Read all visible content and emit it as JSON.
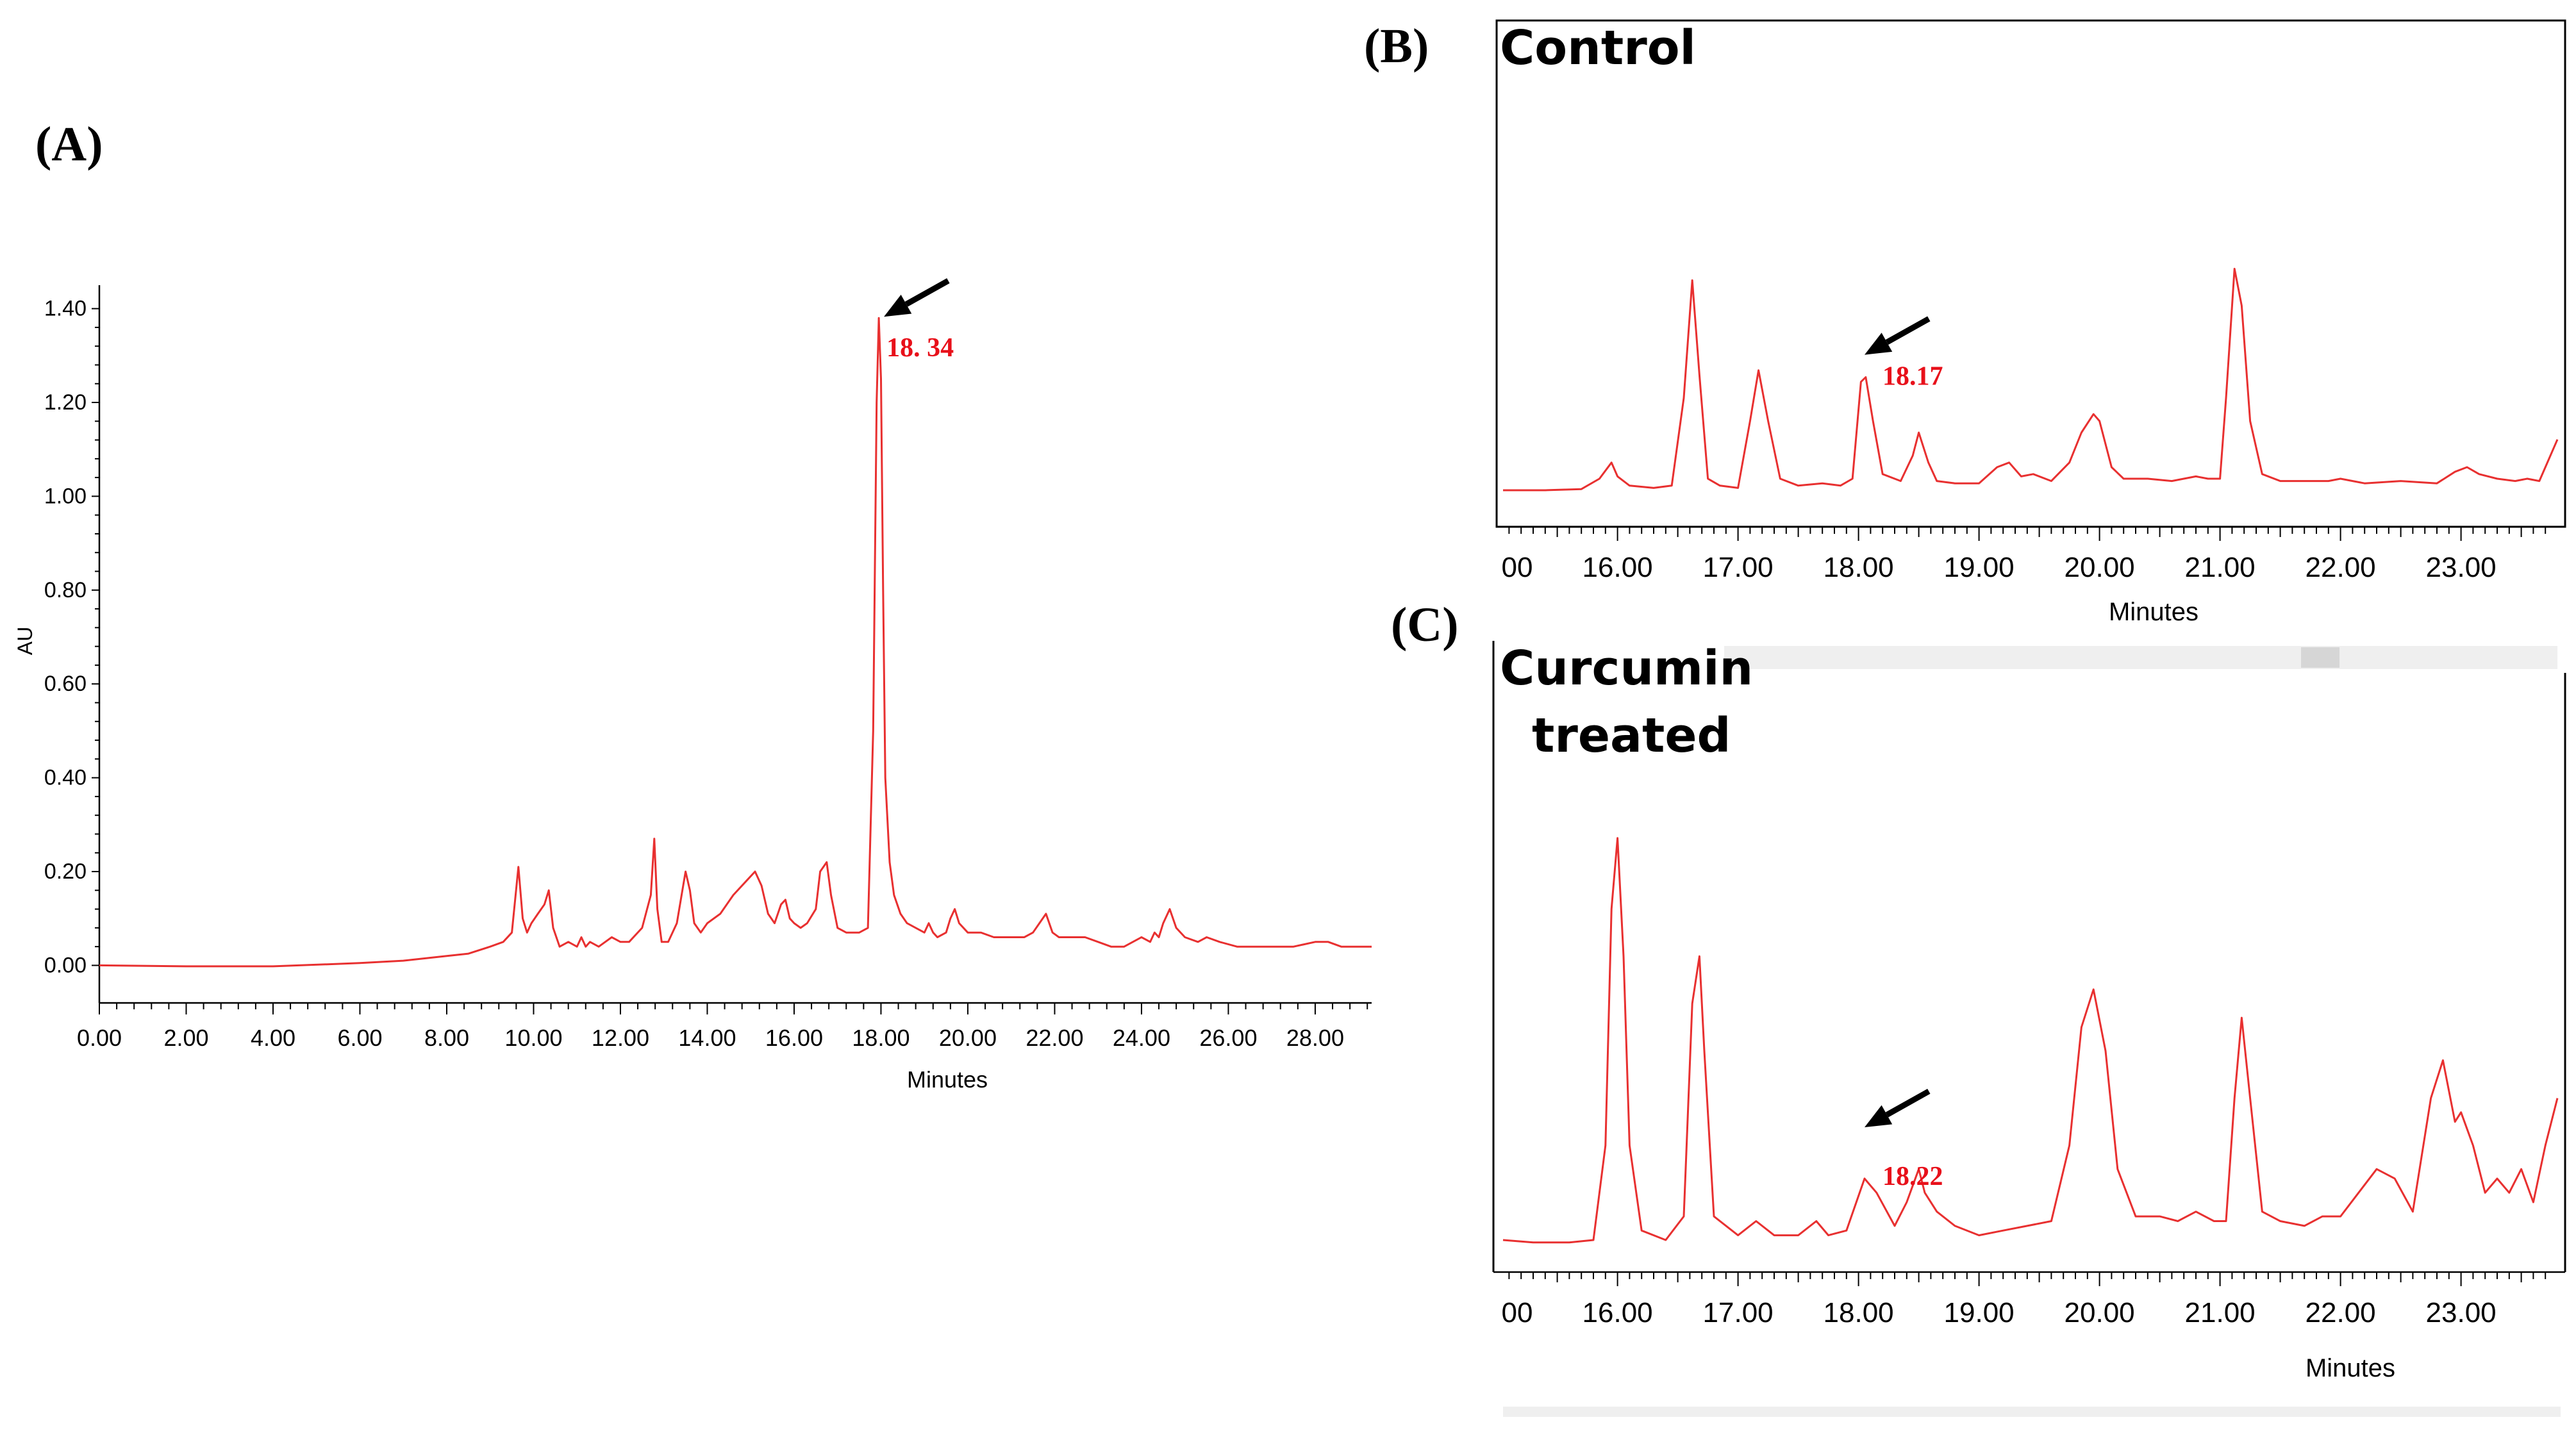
{
  "colors": {
    "trace": "#e83030",
    "peak_label": "#e8101a",
    "arrow": "#000000"
  },
  "chart_data": [
    {
      "panel": "(A)",
      "type": "line",
      "title": "",
      "xlabel": "Minutes",
      "ylabel": "AU",
      "xlim": [
        0,
        29.3
      ],
      "ylim": [
        -0.08,
        1.45
      ],
      "x_ticks": [
        "0.00",
        "2.00",
        "4.00",
        "6.00",
        "8.00",
        "10.00",
        "12.00",
        "14.00",
        "16.00",
        "18.00",
        "20.00",
        "22.00",
        "24.00",
        "26.00",
        "28.00"
      ],
      "y_ticks": [
        "0.00",
        "0.20",
        "0.40",
        "0.60",
        "0.80",
        "1.00",
        "1.20",
        "1.40"
      ],
      "peak_label": "18. 34",
      "peak": {
        "x": 17.95,
        "y": 1.38
      },
      "grid": false,
      "series": [
        {
          "x": [
            0,
            2,
            4,
            6,
            7,
            8,
            8.5,
            9,
            9.3,
            9.5,
            9.65,
            9.75,
            9.85,
            9.95,
            10.1,
            10.25,
            10.35,
            10.45,
            10.6,
            10.8,
            11,
            11.1,
            11.2,
            11.3,
            11.5,
            11.8,
            12,
            12.2,
            12.5,
            12.7,
            12.78,
            12.85,
            12.95,
            13.1,
            13.3,
            13.5,
            13.6,
            13.7,
            13.85,
            14,
            14.3,
            14.6,
            14.9,
            15.1,
            15.25,
            15.4,
            15.55,
            15.7,
            15.8,
            15.9,
            16,
            16.15,
            16.3,
            16.5,
            16.6,
            16.75,
            16.85,
            17,
            17.2,
            17.5,
            17.7,
            17.82,
            17.9,
            17.95,
            18,
            18.05,
            18.1,
            18.2,
            18.3,
            18.45,
            18.6,
            18.8,
            19,
            19.1,
            19.2,
            19.3,
            19.5,
            19.6,
            19.7,
            19.8,
            20,
            20.3,
            20.6,
            21,
            21.3,
            21.5,
            21.65,
            21.8,
            21.95,
            22.1,
            22.4,
            22.7,
            23,
            23.3,
            23.6,
            24,
            24.2,
            24.3,
            24.4,
            24.5,
            24.65,
            24.8,
            25,
            25.3,
            25.5,
            25.8,
            26.2,
            26.6,
            27,
            27.5,
            28,
            28.3,
            28.6,
            29,
            29.3
          ],
          "y": [
            0.0,
            -0.002,
            -0.002,
            0.005,
            0.01,
            0.02,
            0.025,
            0.04,
            0.05,
            0.07,
            0.21,
            0.1,
            0.07,
            0.09,
            0.11,
            0.13,
            0.16,
            0.08,
            0.04,
            0.05,
            0.04,
            0.06,
            0.04,
            0.05,
            0.04,
            0.06,
            0.05,
            0.05,
            0.08,
            0.15,
            0.27,
            0.12,
            0.05,
            0.05,
            0.09,
            0.2,
            0.16,
            0.09,
            0.07,
            0.09,
            0.11,
            0.15,
            0.18,
            0.2,
            0.17,
            0.11,
            0.09,
            0.13,
            0.14,
            0.1,
            0.09,
            0.08,
            0.09,
            0.12,
            0.2,
            0.22,
            0.15,
            0.08,
            0.07,
            0.07,
            0.08,
            0.5,
            1.2,
            1.38,
            1.25,
            0.8,
            0.4,
            0.22,
            0.15,
            0.11,
            0.09,
            0.08,
            0.07,
            0.09,
            0.07,
            0.06,
            0.07,
            0.1,
            0.12,
            0.09,
            0.07,
            0.07,
            0.06,
            0.06,
            0.06,
            0.07,
            0.09,
            0.11,
            0.07,
            0.06,
            0.06,
            0.06,
            0.05,
            0.04,
            0.04,
            0.06,
            0.05,
            0.07,
            0.06,
            0.09,
            0.12,
            0.08,
            0.06,
            0.05,
            0.06,
            0.05,
            0.04,
            0.04,
            0.04,
            0.04,
            0.05,
            0.05,
            0.04,
            0.04,
            0.04
          ]
        }
      ]
    },
    {
      "panel": "(B)",
      "type": "line",
      "title": "Control",
      "xlabel": "Minutes",
      "xlim": [
        15.05,
        23.8
      ],
      "x_ticks": [
        "00",
        "16.00",
        "17.00",
        "18.00",
        "19.00",
        "20.00",
        "21.00",
        "22.00",
        "23.00"
      ],
      "peak_label": "18.17",
      "peak": {
        "x": 18.05,
        "y": 0.49
      },
      "grid": false,
      "series": [
        {
          "x": [
            15.05,
            15.4,
            15.7,
            15.85,
            15.95,
            16,
            16.1,
            16.3,
            16.45,
            16.55,
            16.62,
            16.68,
            16.75,
            16.85,
            17,
            17.1,
            17.17,
            17.25,
            17.35,
            17.5,
            17.7,
            17.85,
            17.95,
            18.02,
            18.06,
            18.12,
            18.2,
            18.35,
            18.45,
            18.5,
            18.58,
            18.65,
            18.8,
            19.0,
            19.15,
            19.25,
            19.35,
            19.45,
            19.6,
            19.75,
            19.85,
            19.95,
            20.0,
            20.1,
            20.2,
            20.4,
            20.6,
            20.8,
            20.9,
            21.0,
            21.05,
            21.12,
            21.18,
            21.25,
            21.35,
            21.5,
            21.7,
            21.9,
            22.0,
            22.2,
            22.5,
            22.8,
            22.95,
            23.05,
            23.15,
            23.3,
            23.45,
            23.55,
            23.65,
            23.8
          ],
          "y": [
            0.0,
            0.0,
            0.005,
            0.05,
            0.12,
            0.06,
            0.02,
            0.01,
            0.02,
            0.4,
            0.91,
            0.5,
            0.05,
            0.02,
            0.01,
            0.3,
            0.52,
            0.3,
            0.05,
            0.02,
            0.03,
            0.02,
            0.05,
            0.47,
            0.49,
            0.3,
            0.07,
            0.04,
            0.15,
            0.25,
            0.12,
            0.04,
            0.03,
            0.03,
            0.1,
            0.12,
            0.06,
            0.07,
            0.04,
            0.12,
            0.25,
            0.33,
            0.3,
            0.1,
            0.05,
            0.05,
            0.04,
            0.06,
            0.05,
            0.05,
            0.4,
            0.96,
            0.8,
            0.3,
            0.07,
            0.04,
            0.04,
            0.04,
            0.05,
            0.03,
            0.04,
            0.03,
            0.08,
            0.1,
            0.07,
            0.05,
            0.04,
            0.05,
            0.04,
            0.22
          ]
        }
      ]
    },
    {
      "panel": "(C)",
      "type": "line",
      "title": "Curcumin treated",
      "title_lines": [
        "Curcumin",
        "treated"
      ],
      "xlabel": "Minutes",
      "xlim": [
        15.05,
        23.8
      ],
      "x_ticks": [
        "00",
        "16.00",
        "17.00",
        "18.00",
        "19.00",
        "20.00",
        "21.00",
        "22.00",
        "23.00"
      ],
      "peak_label": "18.22",
      "peak": {
        "x": 18.05,
        "y": 0.13
      },
      "grid": false,
      "series": [
        {
          "x": [
            15.05,
            15.3,
            15.6,
            15.8,
            15.9,
            15.95,
            16.0,
            16.05,
            16.1,
            16.2,
            16.4,
            16.55,
            16.62,
            16.68,
            16.72,
            16.8,
            17.0,
            17.15,
            17.3,
            17.5,
            17.65,
            17.75,
            17.9,
            18.05,
            18.15,
            18.3,
            18.4,
            18.5,
            18.55,
            18.65,
            18.8,
            19.0,
            19.2,
            19.4,
            19.6,
            19.75,
            19.85,
            19.95,
            20.05,
            20.15,
            20.3,
            20.5,
            20.65,
            20.8,
            20.95,
            21.05,
            21.12,
            21.18,
            21.25,
            21.35,
            21.5,
            21.7,
            21.85,
            22.0,
            22.15,
            22.3,
            22.45,
            22.6,
            22.75,
            22.85,
            22.95,
            23.0,
            23.1,
            23.2,
            23.3,
            23.4,
            23.5,
            23.6,
            23.7,
            23.8
          ],
          "y": [
            0.0,
            -0.005,
            -0.005,
            0.0,
            0.2,
            0.7,
            0.85,
            0.6,
            0.2,
            0.02,
            0.0,
            0.05,
            0.5,
            0.6,
            0.4,
            0.05,
            0.01,
            0.04,
            0.01,
            0.01,
            0.04,
            0.01,
            0.02,
            0.13,
            0.1,
            0.03,
            0.08,
            0.15,
            0.1,
            0.06,
            0.03,
            0.01,
            0.02,
            0.03,
            0.04,
            0.2,
            0.45,
            0.53,
            0.4,
            0.15,
            0.05,
            0.05,
            0.04,
            0.06,
            0.04,
            0.04,
            0.3,
            0.47,
            0.3,
            0.06,
            0.04,
            0.03,
            0.05,
            0.05,
            0.1,
            0.15,
            0.13,
            0.06,
            0.3,
            0.38,
            0.25,
            0.27,
            0.2,
            0.1,
            0.13,
            0.1,
            0.15,
            0.08,
            0.2,
            0.3
          ]
        }
      ]
    }
  ]
}
